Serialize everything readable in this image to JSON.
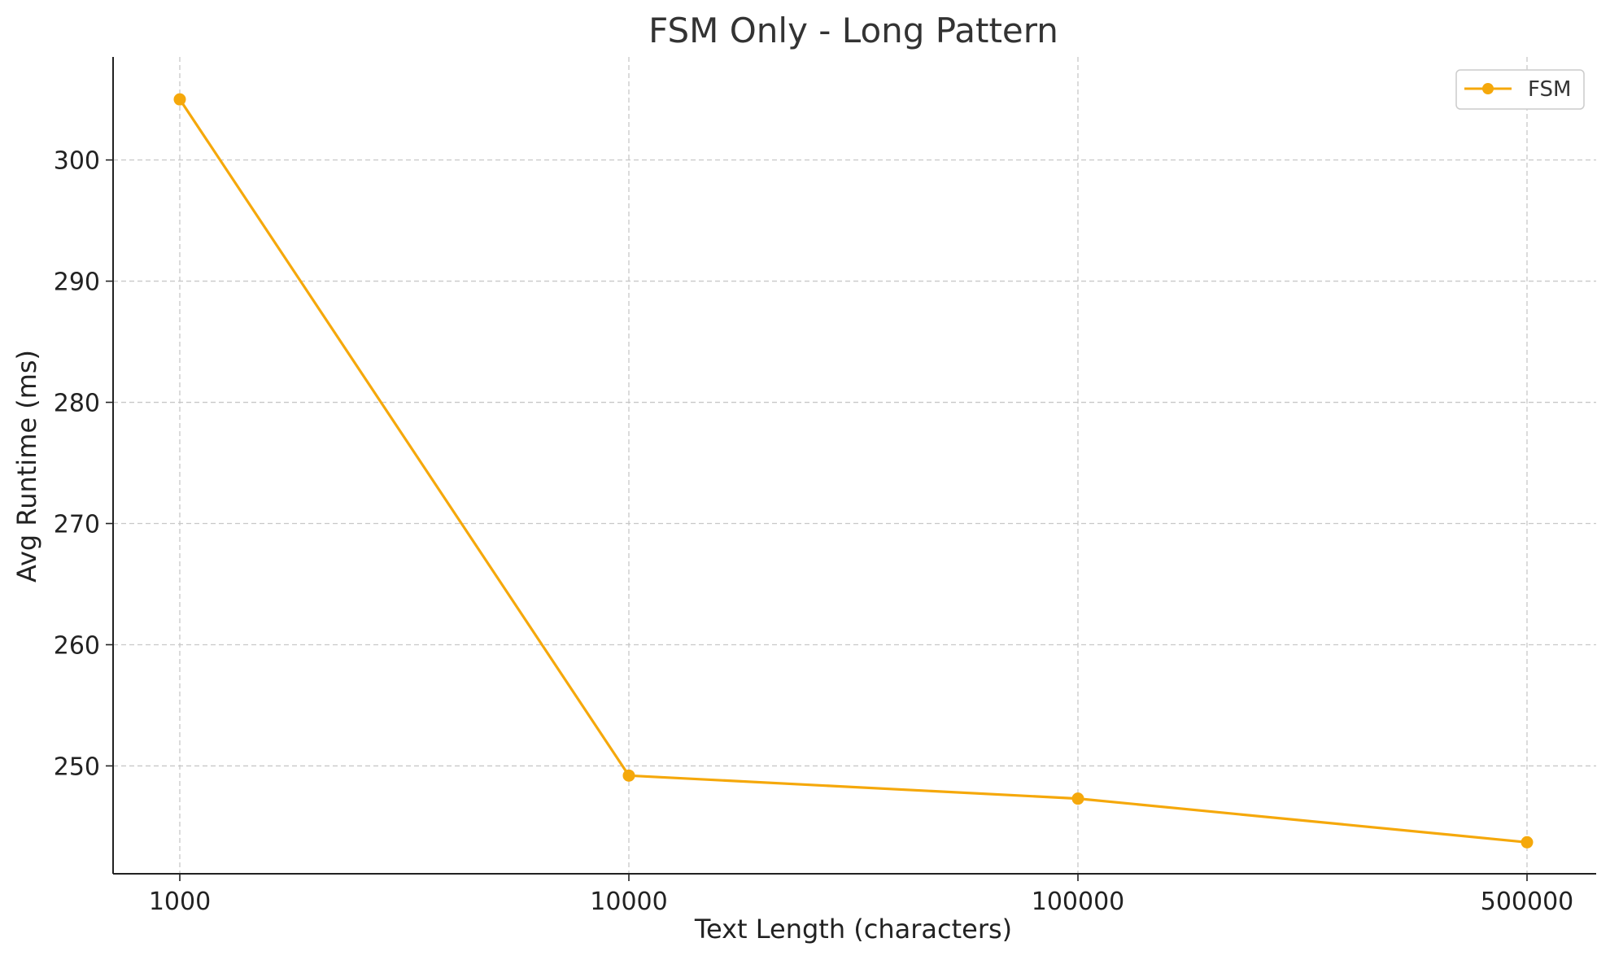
{
  "chart_data": {
    "type": "line",
    "title": "FSM Only - Long Pattern",
    "xlabel": "Text Length (characters)",
    "ylabel": "Avg Runtime (ms)",
    "x_categories": [
      "1000",
      "10000",
      "100000",
      "500000"
    ],
    "y_ticks": [
      250,
      260,
      270,
      280,
      290,
      300
    ],
    "ylim": [
      241.1,
      308.5
    ],
    "grid": true,
    "legend_position": "top-right",
    "series": [
      {
        "name": "FSM",
        "color": "#f5a80b",
        "marker": "circle",
        "values": [
          305.0,
          249.2,
          247.3,
          243.7
        ]
      }
    ]
  }
}
